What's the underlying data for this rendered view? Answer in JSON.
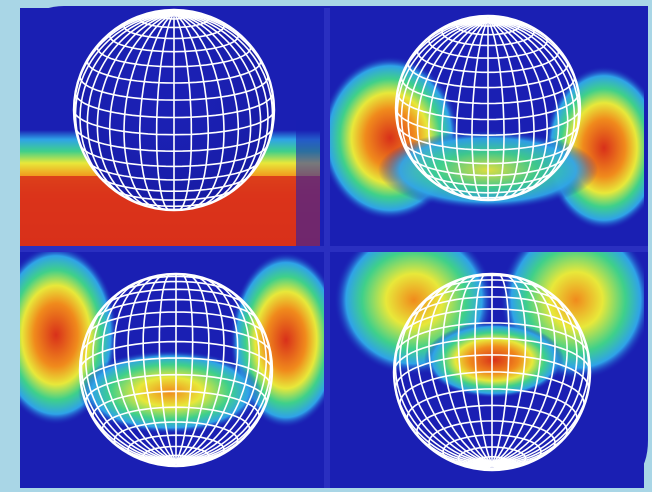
{
  "figure": {
    "description_visible_text": "",
    "colors": {
      "frame_outer": "#a9d6e6",
      "panel_background": "#1a1fb3",
      "divider": "#2a2fc0",
      "grid_line": "#ffffff",
      "heat_low": "#1a1fb3",
      "heat_mid_low": "#2fa3e8",
      "heat_mid": "#3fd08a",
      "heat_mid_high": "#e8e83a",
      "heat_high": "#f08a1c",
      "heat_max": "#d8301a"
    },
    "panels": [
      {
        "id": "top-left",
        "sphere_grid_icon": "wireframe-sphere-icon"
      },
      {
        "id": "top-right",
        "sphere_grid_icon": "wireframe-sphere-icon"
      },
      {
        "id": "bottom-left",
        "sphere_grid_icon": "wireframe-sphere-icon"
      },
      {
        "id": "bottom-right",
        "sphere_grid_icon": "wireframe-sphere-icon"
      }
    ]
  }
}
